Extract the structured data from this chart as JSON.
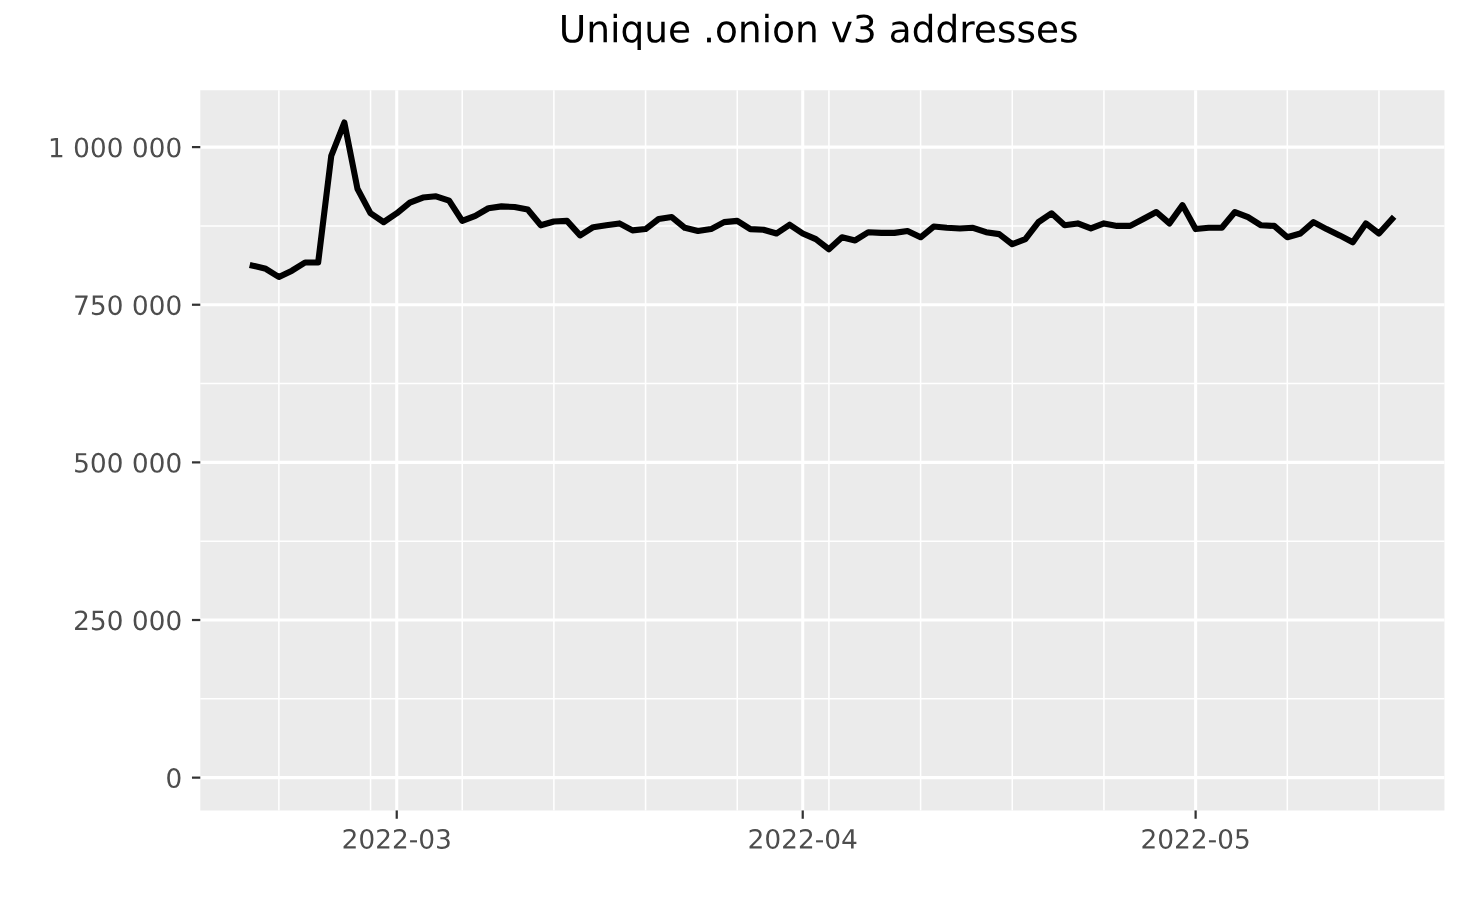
{
  "chart_data": {
    "type": "line",
    "title": "Unique .onion v3 addresses",
    "x": [
      "2022-02-18",
      "2022-02-19",
      "2022-02-20",
      "2022-02-21",
      "2022-02-22",
      "2022-02-23",
      "2022-02-24",
      "2022-02-25",
      "2022-02-26",
      "2022-02-27",
      "2022-02-28",
      "2022-03-01",
      "2022-03-02",
      "2022-03-03",
      "2022-03-04",
      "2022-03-05",
      "2022-03-06",
      "2022-03-07",
      "2022-03-08",
      "2022-03-09",
      "2022-03-10",
      "2022-03-11",
      "2022-03-12",
      "2022-03-13",
      "2022-03-14",
      "2022-03-15",
      "2022-03-16",
      "2022-03-17",
      "2022-03-18",
      "2022-03-19",
      "2022-03-20",
      "2022-03-21",
      "2022-03-22",
      "2022-03-23",
      "2022-03-24",
      "2022-03-25",
      "2022-03-26",
      "2022-03-27",
      "2022-03-28",
      "2022-03-29",
      "2022-03-30",
      "2022-03-31",
      "2022-04-01",
      "2022-04-02",
      "2022-04-03",
      "2022-04-04",
      "2022-04-05",
      "2022-04-06",
      "2022-04-07",
      "2022-04-08",
      "2022-04-09",
      "2022-04-10",
      "2022-04-11",
      "2022-04-12",
      "2022-04-13",
      "2022-04-14",
      "2022-04-15",
      "2022-04-16",
      "2022-04-17",
      "2022-04-18",
      "2022-04-19",
      "2022-04-20",
      "2022-04-21",
      "2022-04-22",
      "2022-04-23",
      "2022-04-24",
      "2022-04-25",
      "2022-04-26",
      "2022-04-27",
      "2022-04-28",
      "2022-04-29",
      "2022-04-30",
      "2022-05-01",
      "2022-05-02",
      "2022-05-03",
      "2022-05-04",
      "2022-05-05",
      "2022-05-06",
      "2022-05-07",
      "2022-05-08",
      "2022-05-09",
      "2022-05-10",
      "2022-05-11",
      "2022-05-12",
      "2022-05-13",
      "2022-05-14",
      "2022-05-15",
      "2022-05-16"
    ],
    "series": [
      {
        "color": "#000000",
        "values": [
          812000,
          807000,
          794000,
          804000,
          817000,
          817000,
          986000,
          1039000,
          934000,
          895000,
          881000,
          895000,
          912000,
          920000,
          922000,
          915000,
          883000,
          891000,
          903000,
          906000,
          905000,
          901000,
          876000,
          882000,
          883000,
          860000,
          873000,
          876000,
          879000,
          868000,
          870000,
          886000,
          889000,
          872000,
          867000,
          870000,
          881000,
          883000,
          870000,
          869000,
          863000,
          877000,
          863000,
          854000,
          838000,
          857000,
          852000,
          865000,
          864000,
          864000,
          867000,
          857000,
          874000,
          872000,
          871000,
          872000,
          865000,
          862000,
          846000,
          854000,
          881000,
          895000,
          876000,
          879000,
          871000,
          879000,
          875000,
          875000,
          886000,
          897000,
          879000,
          908000,
          870000,
          872000,
          872000,
          897000,
          889000,
          876000,
          875000,
          857000,
          863000,
          881000,
          870000,
          860000,
          849000,
          879000,
          863000,
          886000
        ]
      }
    ],
    "xlim": [
      "2022-02-14",
      "2022-05-20"
    ],
    "xticks": [
      {
        "value": "2022-02-20",
        "label": null
      },
      {
        "value": "2022-02-27",
        "label": null
      },
      {
        "value": "2022-03-01",
        "label": "2022-03"
      },
      {
        "value": "2022-03-06",
        "label": null
      },
      {
        "value": "2022-03-13",
        "label": null
      },
      {
        "value": "2022-03-20",
        "label": null
      },
      {
        "value": "2022-03-27",
        "label": null
      },
      {
        "value": "2022-04-01",
        "label": "2022-04"
      },
      {
        "value": "2022-04-03",
        "label": null
      },
      {
        "value": "2022-04-10",
        "label": null
      },
      {
        "value": "2022-04-17",
        "label": null
      },
      {
        "value": "2022-04-24",
        "label": null
      },
      {
        "value": "2022-05-01",
        "label": "2022-05"
      },
      {
        "value": "2022-05-08",
        "label": null
      },
      {
        "value": "2022-05-15",
        "label": null
      }
    ],
    "ylim": [
      -52000,
      1090000
    ],
    "yticks": [
      {
        "value": 0,
        "label": "0"
      },
      {
        "value": 125000,
        "label": null
      },
      {
        "value": 250000,
        "label": "250 000"
      },
      {
        "value": 375000,
        "label": null
      },
      {
        "value": 500000,
        "label": "500 000"
      },
      {
        "value": 625000,
        "label": null
      },
      {
        "value": 750000,
        "label": "750 000"
      },
      {
        "value": 875000,
        "label": null
      },
      {
        "value": 1000000,
        "label": "1 000 000"
      }
    ],
    "grid": true,
    "line_style": "solid",
    "marker": "none"
  }
}
